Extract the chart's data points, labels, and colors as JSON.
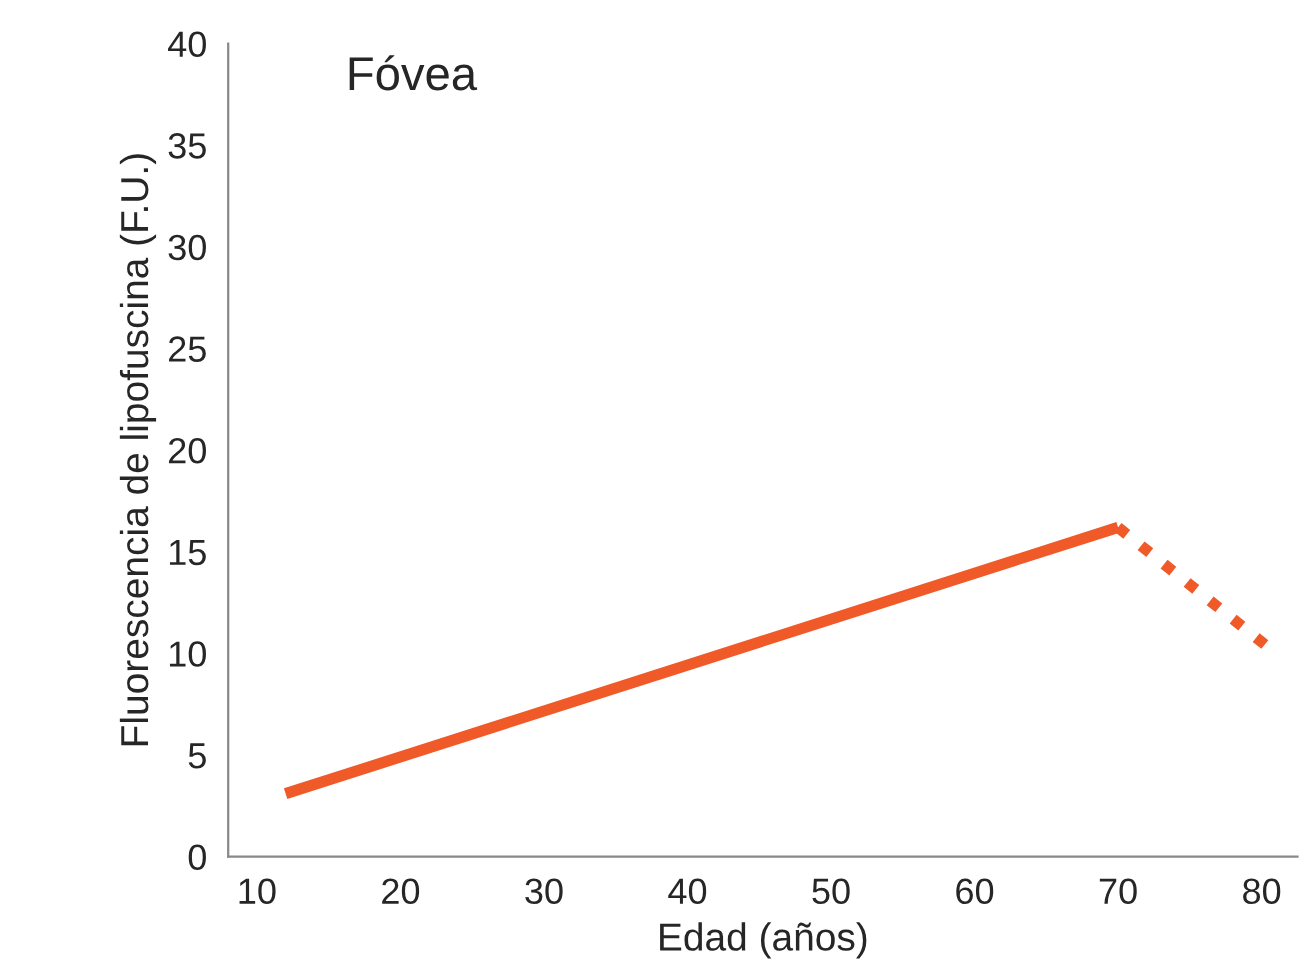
{
  "chart_data": {
    "type": "line",
    "title": "Fóvea",
    "xlabel": "Edad (años)",
    "ylabel": "Fluorescencia de lipofuscina (F.U.)",
    "series": [
      {
        "color": "#f05a28",
        "x": [
          12,
          70
        ],
        "values": [
          3.1,
          16.2
        ],
        "line_style": "solid"
      },
      {
        "color": "#f05a28",
        "x": [
          70,
          81
        ],
        "values": [
          16.2,
          10
        ],
        "line_style": "dotted"
      }
    ],
    "xlim": [
      8,
      82.5
    ],
    "xticks": [
      10,
      20,
      30,
      40,
      50,
      60,
      70,
      80
    ],
    "ylim": [
      0,
      40
    ],
    "yticks": [
      0,
      5,
      10,
      15,
      20,
      25,
      30,
      35,
      40
    ],
    "grid": false,
    "legend": false
  }
}
